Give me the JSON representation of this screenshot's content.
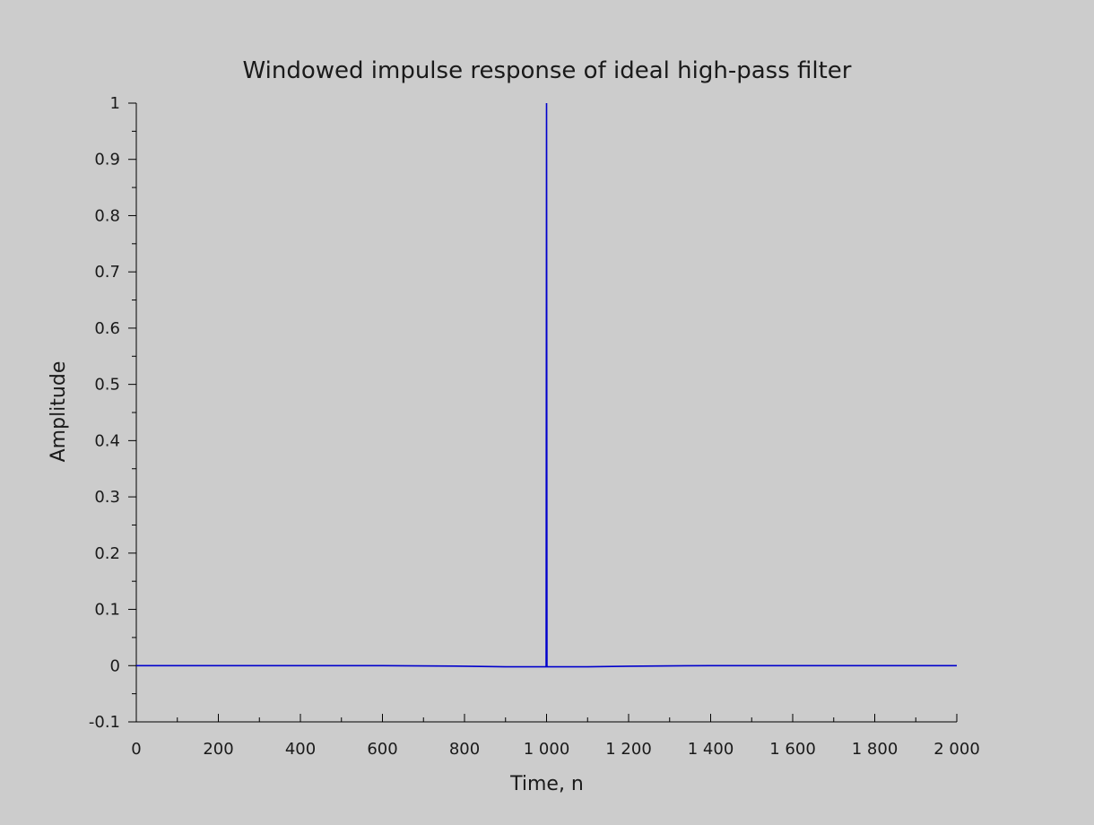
{
  "chart_data": {
    "type": "line",
    "title": "Windowed impulse response of ideal high-pass filter",
    "xlabel": "Time, n",
    "ylabel": "Amplitude",
    "xlim": [
      0,
      2000
    ],
    "ylim": [
      -0.1,
      1
    ],
    "grid": false,
    "x_ticks": [
      0,
      200,
      400,
      600,
      800,
      1000,
      1200,
      1400,
      1600,
      1800,
      2000
    ],
    "x_tick_labels": [
      "0",
      "200",
      "400",
      "600",
      "800",
      "1 000",
      "1 200",
      "1 400",
      "1 600",
      "1 800",
      "2 000"
    ],
    "y_ticks": [
      -0.1,
      0,
      0.1,
      0.2,
      0.3,
      0.4,
      0.5,
      0.6,
      0.7,
      0.8,
      0.9,
      1
    ],
    "y_tick_labels": [
      "-0.1",
      "0",
      "0.1",
      "0.2",
      "0.3",
      "0.4",
      "0.5",
      "0.6",
      "0.7",
      "0.8",
      "0.9",
      "1"
    ],
    "series": [
      {
        "color": "#0000cc",
        "x": [
          0,
          200,
          400,
          600,
          800,
          900,
          950,
          990,
          999,
          1000,
          1001,
          1010,
          1050,
          1100,
          1200,
          1400,
          1600,
          1800,
          2000
        ],
        "y": [
          0,
          0,
          0,
          0,
          -0.001,
          -0.002,
          -0.002,
          -0.002,
          -0.002,
          1.0,
          -0.002,
          -0.002,
          -0.002,
          -0.002,
          -0.001,
          0,
          0,
          0,
          0
        ]
      }
    ]
  }
}
